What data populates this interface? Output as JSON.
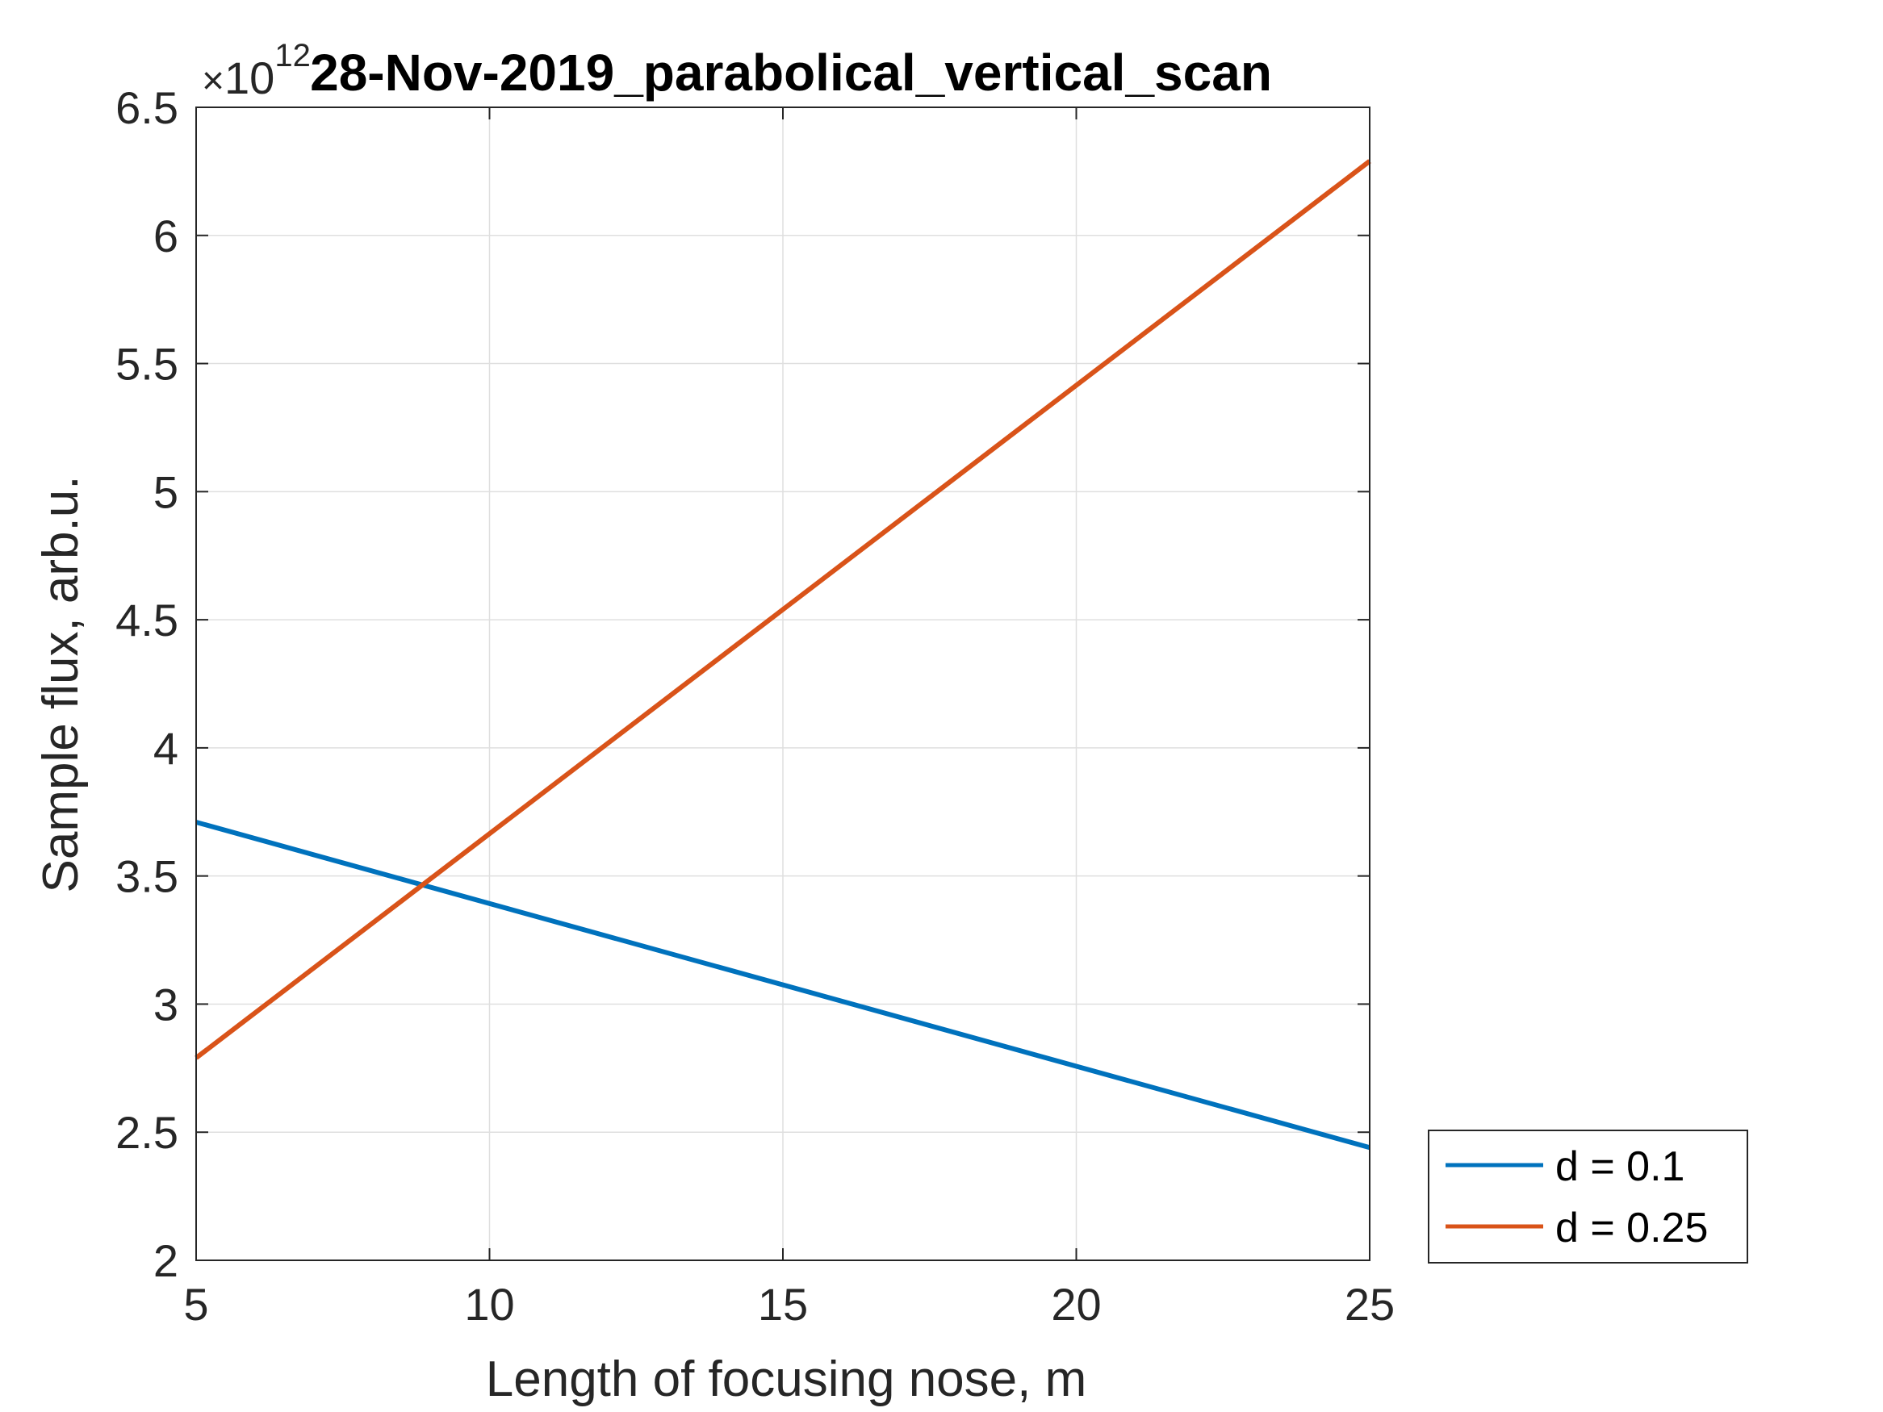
{
  "chart_data": {
    "type": "line",
    "title": "28-Nov-2019_parabolical_vertical_scan",
    "xlabel": "Length of focusing nose, m",
    "ylabel": "Sample flux, arb.u.",
    "y_exponent_label": "10",
    "y_exponent_power": "12",
    "y_exponent_prefix": "×",
    "xlim": [
      5,
      25
    ],
    "ylim": [
      2,
      6.5
    ],
    "x_ticks": [
      5,
      10,
      15,
      20,
      25
    ],
    "x_tick_labels": [
      "5",
      "10",
      "15",
      "20",
      "25"
    ],
    "y_ticks": [
      2,
      2.5,
      3,
      3.5,
      4,
      4.5,
      5,
      5.5,
      6,
      6.5
    ],
    "y_tick_labels": [
      "2",
      "2.5",
      "3",
      "3.5",
      "4",
      "4.5",
      "5",
      "5.5",
      "6",
      "6.5"
    ],
    "grid": true,
    "legend_position": "outside-bottom-right",
    "series": [
      {
        "name": "d = 0.1",
        "color": "#0072bd",
        "x": [
          5,
          25
        ],
        "y": [
          3.71,
          2.44
        ]
      },
      {
        "name": "d = 0.25",
        "color": "#d95319",
        "x": [
          5,
          25
        ],
        "y": [
          2.79,
          6.29
        ]
      }
    ]
  }
}
